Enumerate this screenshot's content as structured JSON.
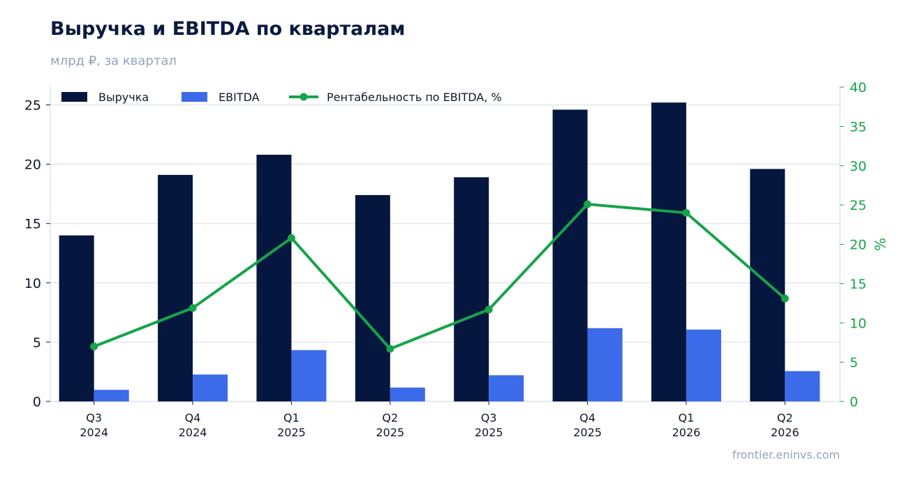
{
  "header": {
    "title": "Выручка и EBITDA по кварталам",
    "subtitle": "млрд ₽, за квартал",
    "source": "frontier.eninvs.com"
  },
  "chart_data": {
    "type": "bar",
    "title": "Выручка и EBITDA по кварталам",
    "subtitle": "млрд ₽, за квартал",
    "categories": [
      [
        "Q3",
        "2024"
      ],
      [
        "Q4",
        "2024"
      ],
      [
        "Q1",
        "2025"
      ],
      [
        "Q2",
        "2025"
      ],
      [
        "Q3",
        "2025"
      ],
      [
        "Q4",
        "2025"
      ],
      [
        "Q1",
        "2026"
      ],
      [
        "Q2",
        "2026"
      ]
    ],
    "series": [
      {
        "name": "Выручка",
        "type": "bar",
        "axis": "left",
        "color": "#05163f",
        "values": [
          14.0,
          19.1,
          20.8,
          17.4,
          18.9,
          24.6,
          25.2,
          19.6
        ]
      },
      {
        "name": "EBITDA",
        "type": "bar",
        "axis": "left",
        "color": "#3b6be8",
        "values": [
          0.98,
          2.27,
          4.33,
          1.17,
          2.21,
          6.18,
          6.06,
          2.56
        ]
      },
      {
        "name": "Рентабельность по EBITDA, %",
        "type": "line",
        "axis": "right",
        "color": "#16a34a",
        "values": [
          7.0,
          11.9,
          20.8,
          6.7,
          11.7,
          25.1,
          24.0,
          13.1
        ]
      }
    ],
    "y_left": {
      "label": "",
      "ylim": [
        0,
        26.5
      ],
      "ticks": [
        0,
        5,
        10,
        15,
        20,
        25
      ]
    },
    "y_right": {
      "label": "%",
      "ylim": [
        0,
        40
      ],
      "ticks": [
        0,
        5,
        10,
        15,
        20,
        25,
        30,
        35,
        40
      ]
    },
    "grid": true,
    "legend_position": "top-left"
  }
}
